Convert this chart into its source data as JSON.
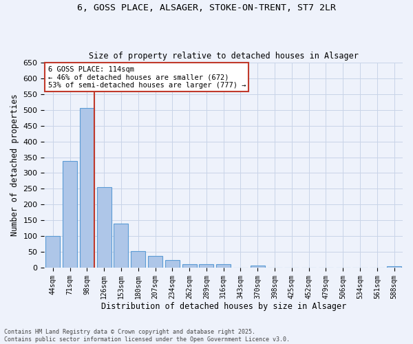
{
  "title_line1": "6, GOSS PLACE, ALSAGER, STOKE-ON-TRENT, ST7 2LR",
  "title_line2": "Size of property relative to detached houses in Alsager",
  "xlabel": "Distribution of detached houses by size in Alsager",
  "ylabel": "Number of detached properties",
  "categories": [
    "44sqm",
    "71sqm",
    "98sqm",
    "126sqm",
    "153sqm",
    "180sqm",
    "207sqm",
    "234sqm",
    "262sqm",
    "289sqm",
    "316sqm",
    "343sqm",
    "370sqm",
    "398sqm",
    "425sqm",
    "452sqm",
    "479sqm",
    "506sqm",
    "534sqm",
    "561sqm",
    "588sqm"
  ],
  "values": [
    100,
    338,
    507,
    255,
    140,
    53,
    37,
    24,
    10,
    10,
    10,
    0,
    6,
    0,
    0,
    0,
    0,
    0,
    0,
    0,
    5
  ],
  "bar_color": "#aec6e8",
  "bar_edge_color": "#5b9bd5",
  "vline_color": "#c0392b",
  "annotation_text": "6 GOSS PLACE: 114sqm\n← 46% of detached houses are smaller (672)\n53% of semi-detached houses are larger (777) →",
  "annotation_box_color": "#ffffff",
  "annotation_box_edge": "#c0392b",
  "ylim": [
    0,
    650
  ],
  "yticks": [
    0,
    50,
    100,
    150,
    200,
    250,
    300,
    350,
    400,
    450,
    500,
    550,
    600,
    650
  ],
  "footer_line1": "Contains HM Land Registry data © Crown copyright and database right 2025.",
  "footer_line2": "Contains public sector information licensed under the Open Government Licence v3.0.",
  "bg_color": "#eef2fb",
  "grid_color": "#c8d4e8"
}
